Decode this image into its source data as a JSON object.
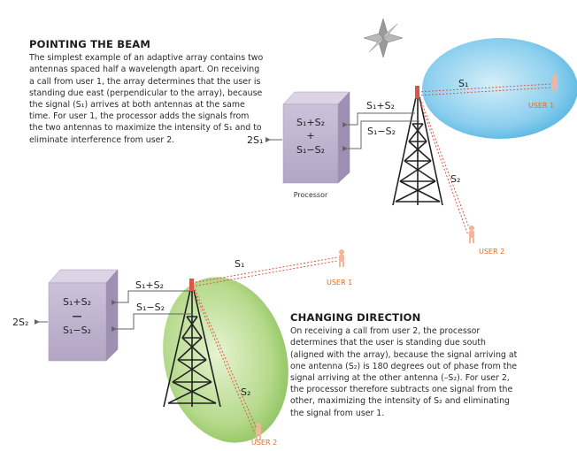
{
  "section1": {
    "heading": "POINTING THE BEAM",
    "paragraph": "The simplest example of an adaptive array contains two antennas spaced half a wavelength apart. On receiving a call from user 1, the array determines that the user is standing due east (perpendicular to the array), because the signal (S₁) arrives at both antennas at the same time. For user 1, the processor adds the signals from the two antennas to maximize the intensity of S₁ and to eliminate interference from user 2."
  },
  "section2": {
    "heading": "CHANGING DIRECTION",
    "paragraph": "On receiving a call from user 2, the processor determines that the user is standing due south (aligned with the array), because the signal arriving at one antenna (S₂) is 180 degrees out of phase from the signal arriving at the other antenna (–S₂). For user 2, the processor therefore subtracts one signal from the other, maximizing the intensity of S₂ and eliminating the signal from user 1."
  },
  "diagram1": {
    "sum_label": "S₁+S₂",
    "plus_sign": "+",
    "diff_label": "S₁−S₂",
    "output_label": "2S₁",
    "processor_label": "Processor",
    "wire_top_label": "S₁+S₂",
    "wire_bottom_label": "S₁−S₂",
    "beam_label": "S₁",
    "user1_label": "USER 1",
    "user2_label": "USER 2",
    "signal2_label": "S₂"
  },
  "diagram2": {
    "sum_label": "S₁+S₂",
    "minus_sign": "—",
    "diff_label": "S₁−S₂",
    "output_label": "2S₂",
    "wire_top_label": "S₁+S₂",
    "wire_bottom_label": "S₁−S₂",
    "signal1_label": "S₁",
    "beam_label": "S₂",
    "user1_label": "USER 1",
    "user2_label": "USER 2"
  },
  "colors": {
    "user_label": "#e36a1f",
    "beam1_fill": "#7cc7ea",
    "beam2_fill": "#a9d37c",
    "processor_face": "#bfb2cf",
    "signal_line": "#d9574a"
  }
}
